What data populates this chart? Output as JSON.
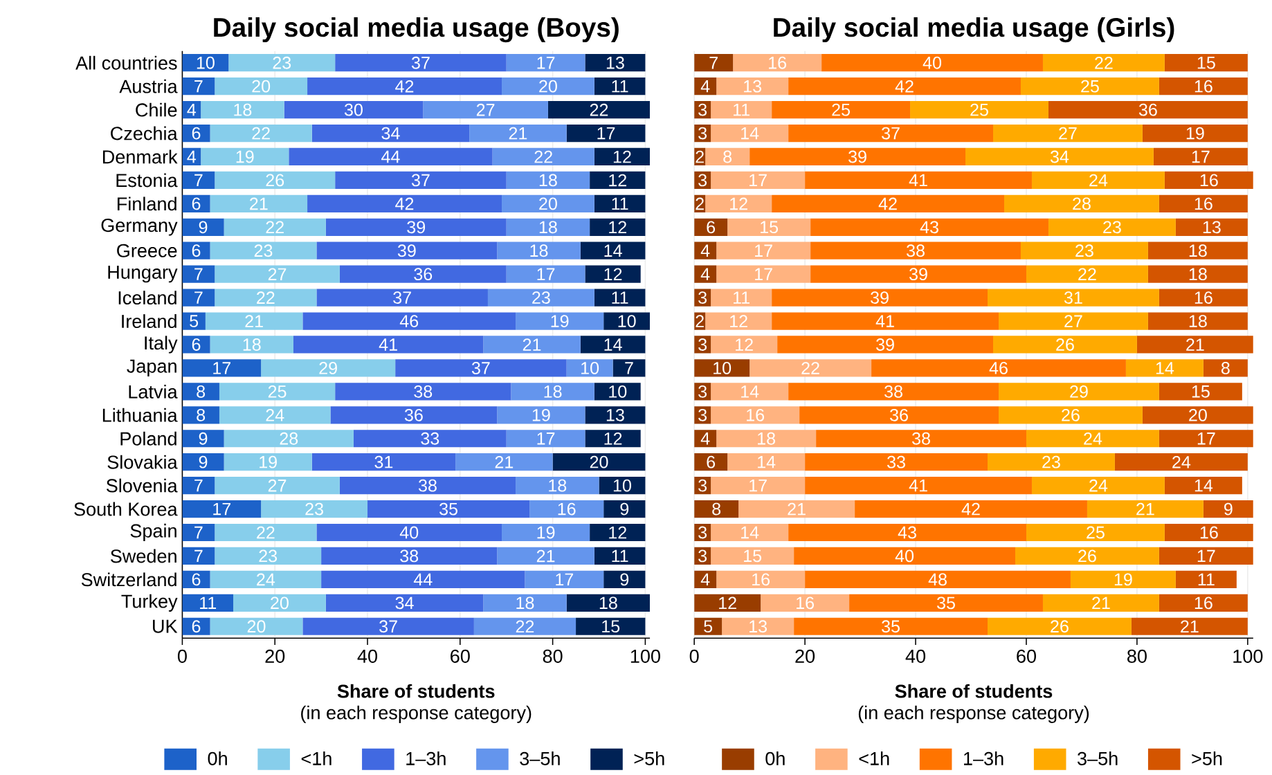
{
  "chart_data": [
    {
      "type": "bar",
      "title": "Daily social media usage (Boys)",
      "xlabel": "Share of students",
      "annotations": [
        "(in each response category)"
      ],
      "orientation": "horizontal",
      "stacked": true,
      "data_labels": true,
      "grid": "x",
      "legend": "bottom",
      "xlim": [
        0,
        101
      ],
      "xticks": [
        0,
        20,
        40,
        60,
        80,
        100
      ],
      "categories": [
        "All countries",
        "Austria",
        "Chile",
        "Czechia",
        "Denmark",
        "Estonia",
        "Finland",
        "Germany",
        "Greece",
        "Hungary",
        "Iceland",
        "Ireland",
        "Italy",
        "Japan",
        "Latvia",
        "Lithuania",
        "Poland",
        "Slovakia",
        "Slovenia",
        "South Korea",
        "Spain",
        "Sweden",
        "Switzerland",
        "Turkey",
        "UK"
      ],
      "series": [
        {
          "name": "0h",
          "color": "#1d62c9",
          "values": [
            10,
            7,
            4,
            6,
            4,
            7,
            6,
            9,
            6,
            7,
            7,
            5,
            6,
            17,
            8,
            8,
            9,
            9,
            7,
            17,
            7,
            7,
            6,
            11,
            6
          ]
        },
        {
          "name": "<1h",
          "color": "#87ceeb",
          "values": [
            23,
            20,
            18,
            22,
            19,
            26,
            21,
            22,
            23,
            27,
            22,
            21,
            18,
            29,
            25,
            24,
            28,
            19,
            27,
            23,
            22,
            23,
            24,
            20,
            20
          ]
        },
        {
          "name": "1–3h",
          "color": "#4169e1",
          "values": [
            37,
            42,
            30,
            34,
            44,
            37,
            42,
            39,
            39,
            36,
            37,
            46,
            41,
            37,
            38,
            36,
            33,
            31,
            38,
            35,
            40,
            38,
            44,
            34,
            37
          ]
        },
        {
          "name": "3–5h",
          "color": "#6495ed",
          "values": [
            17,
            20,
            27,
            21,
            22,
            18,
            20,
            18,
            18,
            17,
            23,
            19,
            21,
            10,
            18,
            19,
            17,
            21,
            18,
            16,
            19,
            21,
            17,
            18,
            22
          ]
        },
        {
          "name": ">5h",
          "color": "#002255",
          "values": [
            13,
            11,
            22,
            17,
            12,
            12,
            11,
            12,
            14,
            12,
            11,
            10,
            14,
            7,
            10,
            13,
            12,
            20,
            10,
            9,
            12,
            11,
            9,
            18,
            15
          ]
        }
      ]
    },
    {
      "type": "bar",
      "title": "Daily social media usage (Girls)",
      "xlabel": "Share of students",
      "annotations": [
        "(in each response category)"
      ],
      "orientation": "horizontal",
      "stacked": true,
      "data_labels": true,
      "grid": "x",
      "legend": "bottom",
      "tick_labels": "x",
      "xlim": [
        0,
        101
      ],
      "xticks": [
        0,
        20,
        40,
        60,
        80,
        100
      ],
      "categories": [
        null,
        null,
        null,
        null,
        null,
        null,
        null,
        null,
        null,
        null,
        null,
        null,
        null,
        null,
        null,
        null,
        null,
        null,
        null,
        null,
        null,
        null,
        null,
        null,
        null
      ],
      "series": [
        {
          "name": "0h",
          "color": "#993d00",
          "values": [
            7,
            4,
            3,
            3,
            2,
            3,
            2,
            6,
            4,
            4,
            3,
            2,
            3,
            10,
            3,
            3,
            4,
            6,
            3,
            8,
            3,
            3,
            4,
            12,
            5
          ]
        },
        {
          "name": "<1h",
          "color": "#ffb380",
          "values": [
            16,
            13,
            11,
            14,
            8,
            17,
            12,
            15,
            17,
            17,
            11,
            12,
            12,
            22,
            14,
            16,
            18,
            14,
            17,
            21,
            14,
            15,
            16,
            16,
            13
          ]
        },
        {
          "name": "1–3h",
          "color": "#ff7400",
          "values": [
            40,
            42,
            25,
            37,
            39,
            41,
            42,
            43,
            38,
            39,
            39,
            41,
            39,
            46,
            38,
            36,
            38,
            33,
            41,
            42,
            43,
            40,
            48,
            35,
            35
          ]
        },
        {
          "name": "3–5h",
          "color": "#ffaa00",
          "values": [
            22,
            25,
            25,
            27,
            34,
            24,
            28,
            23,
            23,
            22,
            31,
            27,
            26,
            14,
            29,
            26,
            24,
            23,
            24,
            21,
            25,
            26,
            19,
            21,
            26
          ]
        },
        {
          "name": ">5h",
          "color": "#d45500",
          "values": [
            15,
            16,
            36,
            19,
            17,
            16,
            16,
            13,
            18,
            18,
            16,
            18,
            21,
            8,
            15,
            20,
            17,
            24,
            14,
            9,
            16,
            17,
            11,
            16,
            21
          ]
        }
      ]
    }
  ]
}
